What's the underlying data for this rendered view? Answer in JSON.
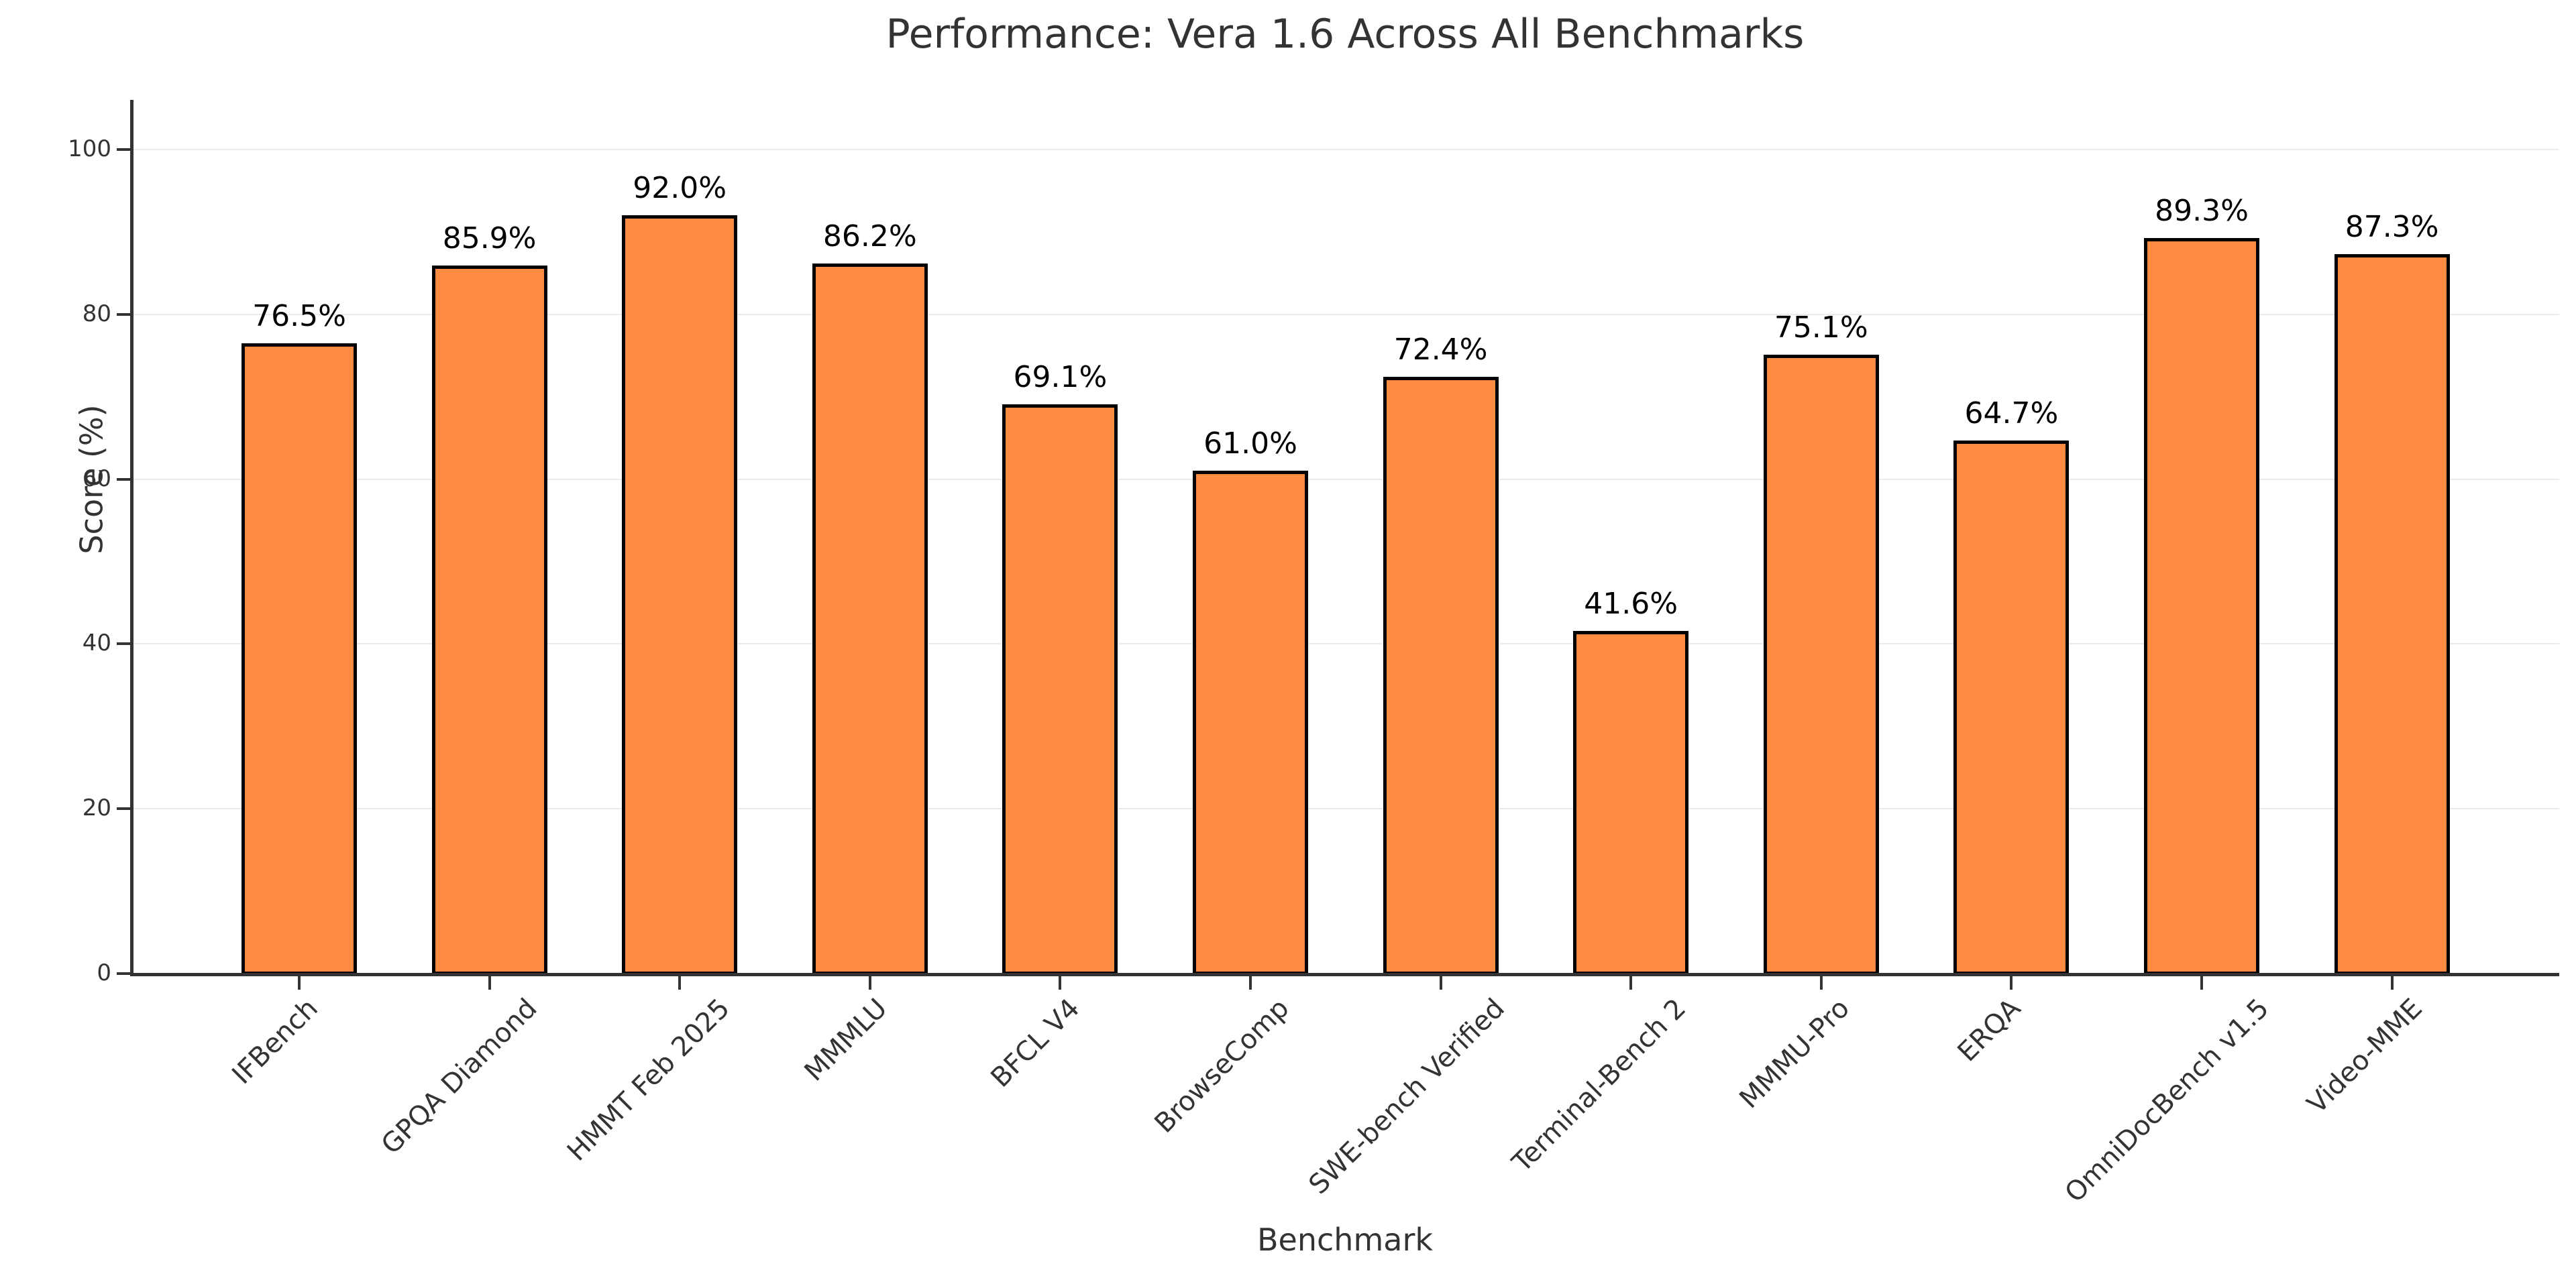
{
  "chart_data": {
    "type": "bar",
    "title": "Performance: Vera 1.6 Across All Benchmarks",
    "xlabel": "Benchmark",
    "ylabel": "Score (%)",
    "ylim": [
      0,
      106
    ],
    "yticks": [
      0,
      20,
      40,
      60,
      80,
      100
    ],
    "grid": true,
    "legend": null,
    "bar_color": "#ff8c42",
    "bar_edge_color": "#000000",
    "categories": [
      "IFBench",
      "GPQA Diamond",
      "HMMT Feb 2025",
      "MMMLU",
      "BFCL V4",
      "BrowseComp",
      "SWE-bench Verified",
      "Terminal-Bench 2",
      "MMMU-Pro",
      "ERQA",
      "OmniDocBench v1.5",
      "Video-MME"
    ],
    "values": [
      76.5,
      85.9,
      92.0,
      86.2,
      69.1,
      61.0,
      72.4,
      41.6,
      75.1,
      64.7,
      89.3,
      87.3
    ],
    "value_labels": [
      "76.5%",
      "85.9%",
      "92.0%",
      "86.2%",
      "69.1%",
      "61.0%",
      "72.4%",
      "41.6%",
      "75.1%",
      "64.7%",
      "89.3%",
      "87.3%"
    ]
  }
}
